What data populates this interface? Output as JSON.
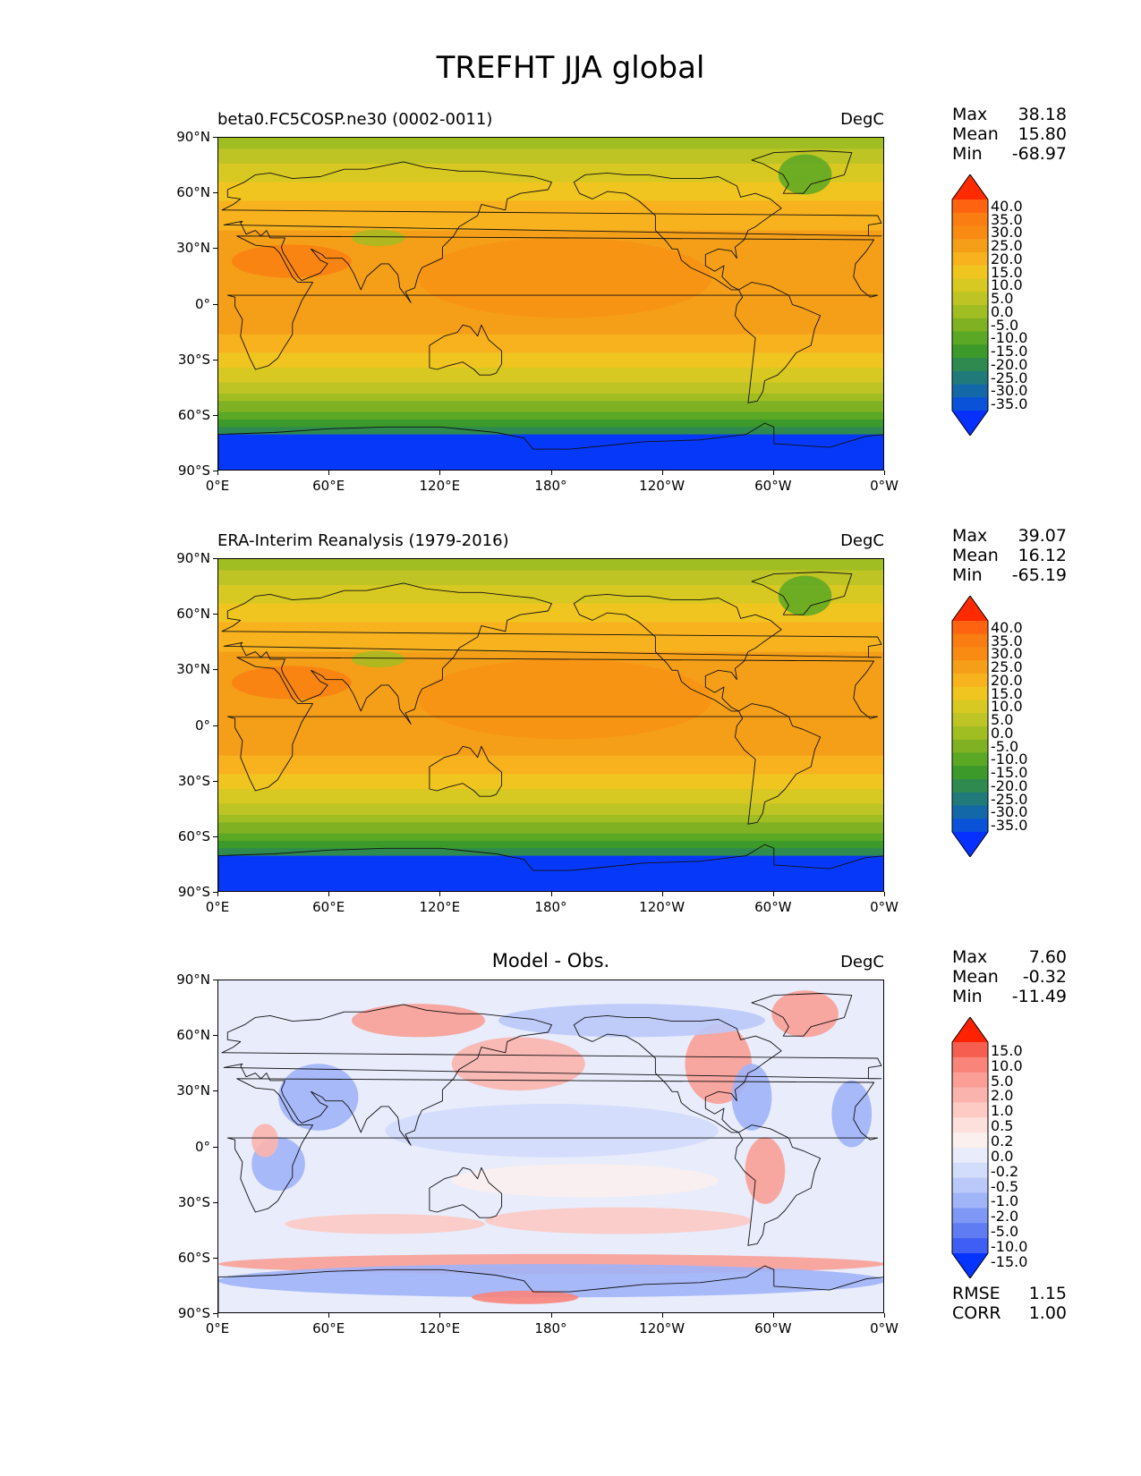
{
  "title": "TREFHT JJA global",
  "lat_ticks": [
    "90°N",
    "60°N",
    "30°N",
    "0°",
    "30°S",
    "60°S",
    "90°S"
  ],
  "lon_ticks": [
    "0°E",
    "60°E",
    "120°E",
    "180°",
    "120°W",
    "60°W",
    "0°W"
  ],
  "panels": [
    {
      "title": "beta0.FC5COSP.ne30 (0002-0011)",
      "units": "DegC",
      "stats": {
        "max_label": "Max",
        "max": "38.18",
        "mean_label": "Mean",
        "mean": "15.80",
        "min_label": "Min",
        "min": "-68.97"
      },
      "colorbar_labels": [
        "40.0",
        "35.0",
        "30.0",
        "25.0",
        "20.0",
        "15.0",
        "10.0",
        "5.0",
        "0.0",
        "-5.0",
        "-10.0",
        "-15.0",
        "-20.0",
        "-25.0",
        "-30.0",
        "-35.0"
      ],
      "colorbar_colors": [
        "#fe3a0c",
        "#fe6410",
        "#fa7d12",
        "#f98b12",
        "#f59f18",
        "#f7b21e",
        "#f1c520",
        "#d8c822",
        "#bdc424",
        "#a0bd22",
        "#7fb122",
        "#5aa824",
        "#3c9a2a",
        "#2f8a50",
        "#217a7a",
        "#1368a8",
        "#0a52d8",
        "#0638fa"
      ],
      "over_color": "#ff2a00",
      "under_color": "#0530ff"
    },
    {
      "title": "ERA-Interim Reanalysis (1979-2016)",
      "units": "DegC",
      "stats": {
        "max_label": "Max",
        "max": "39.07",
        "mean_label": "Mean",
        "mean": "16.12",
        "min_label": "Min",
        "min": "-65.19"
      },
      "colorbar_labels": [
        "40.0",
        "35.0",
        "30.0",
        "25.0",
        "20.0",
        "15.0",
        "10.0",
        "5.0",
        "0.0",
        "-5.0",
        "-10.0",
        "-15.0",
        "-20.0",
        "-25.0",
        "-30.0",
        "-35.0"
      ],
      "colorbar_colors": [
        "#fe3a0c",
        "#fe6410",
        "#fa7d12",
        "#f98b12",
        "#f59f18",
        "#f7b21e",
        "#f1c520",
        "#d8c822",
        "#bdc424",
        "#a0bd22",
        "#7fb122",
        "#5aa824",
        "#3c9a2a",
        "#2f8a50",
        "#217a7a",
        "#1368a8",
        "#0a52d8",
        "#0638fa"
      ],
      "over_color": "#ff2a00",
      "under_color": "#0530ff"
    },
    {
      "title": "Model - Obs.",
      "units": "DegC",
      "stats": {
        "max_label": "Max",
        "max": "7.60",
        "mean_label": "Mean",
        "mean": "-0.32",
        "min_label": "Min",
        "min": "-11.49"
      },
      "colorbar_labels": [
        "15.0",
        "10.0",
        "5.0",
        "2.0",
        "1.0",
        "0.5",
        "0.2",
        "0.0",
        "-0.2",
        "-0.5",
        "-1.0",
        "-2.0",
        "-5.0",
        "-10.0",
        "-15.0"
      ],
      "colorbar_colors": [
        "#ff3311",
        "#f65f4f",
        "#f8847a",
        "#fa9e96",
        "#fbb4ad",
        "#fdcac4",
        "#fde0dc",
        "#fbf0ee",
        "#e8ecfb",
        "#d2dcfb",
        "#bac9fa",
        "#a0b4f8",
        "#7f98f5",
        "#5f7cf2",
        "#3f5ef3",
        "#1e40fb"
      ],
      "over_color": "#ff2200",
      "under_color": "#0533ff",
      "metrics": {
        "rmse_label": "RMSE",
        "rmse": "1.15",
        "corr_label": "CORR",
        "corr": "1.00"
      }
    }
  ]
}
